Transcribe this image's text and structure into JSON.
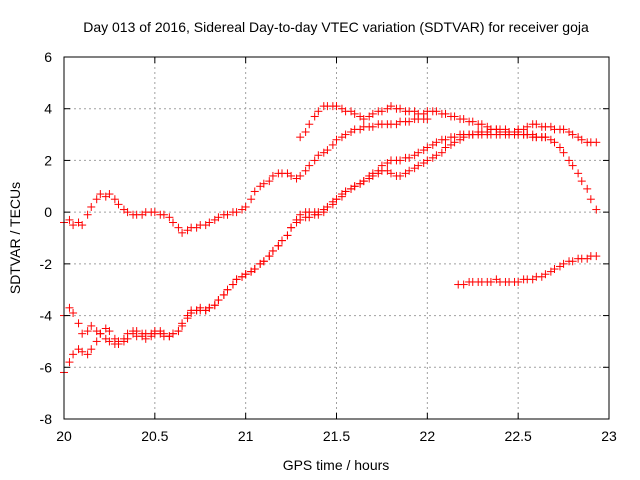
{
  "chart_data": {
    "type": "scatter",
    "title": "Day 013 of 2016, Sidereal Day-to-day VTEC variation (SDTVAR) for receiver goja",
    "xlabel": "GPS time / hours",
    "ylabel": "SDTVAR / TECUs",
    "xlim": [
      20,
      23
    ],
    "ylim": [
      -8,
      6
    ],
    "xticks": [
      "20",
      "20.5",
      "21",
      "21.5",
      "22",
      "22.5",
      "23"
    ],
    "yticks": [
      "-8",
      "-6",
      "-4",
      "-2",
      "0",
      "2",
      "4",
      "6"
    ],
    "grid": true,
    "legend": "none",
    "marker": "plus",
    "color": "#ff0000",
    "series": [
      {
        "x": [
          20.0,
          20.03,
          20.05,
          20.08,
          20.1,
          20.13,
          20.15,
          20.18,
          20.2,
          20.23,
          20.25,
          20.28,
          20.3,
          20.33,
          20.35,
          20.38,
          20.4,
          20.43,
          20.45,
          20.48,
          20.5,
          20.53,
          20.55,
          20.58,
          20.6,
          20.63,
          20.65,
          20.68,
          20.7,
          20.73,
          20.75,
          20.78,
          20.8,
          20.83,
          20.85,
          20.88,
          20.9,
          20.93,
          20.95,
          20.98,
          21.0,
          21.03,
          21.05,
          21.08,
          21.1,
          21.13,
          21.15,
          21.18,
          21.2,
          21.23,
          21.25,
          21.28,
          21.3,
          21.33,
          21.35,
          21.38,
          21.4,
          21.43,
          21.45,
          21.48,
          21.5,
          21.53,
          21.55,
          21.58,
          21.6,
          21.63,
          21.65,
          21.68,
          21.7,
          21.73,
          21.75,
          21.78,
          21.8,
          21.83,
          21.85,
          21.88,
          21.9,
          21.93,
          21.95,
          21.98,
          22.0
        ],
        "y": [
          -0.4,
          -0.3,
          -0.5,
          -0.4,
          -0.5,
          -0.1,
          0.2,
          0.5,
          0.7,
          0.6,
          0.7,
          0.5,
          0.3,
          0.1,
          0.0,
          -0.1,
          -0.1,
          -0.1,
          0.0,
          0.0,
          0.0,
          -0.1,
          -0.1,
          -0.2,
          -0.4,
          -0.6,
          -0.8,
          -0.7,
          -0.6,
          -0.6,
          -0.5,
          -0.5,
          -0.4,
          -0.3,
          -0.2,
          -0.1,
          -0.1,
          0.0,
          0.0,
          0.1,
          0.2,
          0.5,
          0.8,
          1.0,
          1.1,
          1.2,
          1.4,
          1.5,
          1.5,
          1.5,
          1.4,
          1.3,
          1.4,
          1.6,
          1.8,
          2.0,
          2.2,
          2.3,
          2.4,
          2.6,
          2.8,
          2.9,
          3.0,
          3.1,
          3.2,
          3.2,
          3.3,
          3.3,
          3.3,
          3.4,
          3.4,
          3.4,
          3.4,
          3.4,
          3.5,
          3.5,
          3.5,
          3.6,
          3.6,
          3.6,
          3.6
        ]
      },
      {
        "x": [
          20.0,
          20.03,
          20.05,
          20.08,
          20.1,
          20.13,
          20.15,
          20.18,
          20.2,
          20.23,
          20.25,
          20.28,
          20.3,
          20.33,
          20.35,
          20.38,
          20.4,
          20.43,
          20.45,
          20.48,
          20.5,
          20.53,
          20.55,
          20.58,
          20.6,
          20.63,
          20.65,
          20.68,
          20.7,
          20.73,
          20.75,
          20.78,
          20.8,
          20.83,
          20.85,
          20.88,
          20.9,
          20.93,
          20.95,
          20.98,
          21.0,
          21.03,
          21.05,
          21.08,
          21.1,
          21.13,
          21.15,
          21.18,
          21.2,
          21.23,
          21.25,
          21.28,
          21.3,
          21.33,
          21.35,
          21.38,
          21.4,
          21.43,
          21.45,
          21.48,
          21.5,
          21.53,
          21.55,
          21.58,
          21.6,
          21.63,
          21.65,
          21.68,
          21.7,
          21.73,
          21.75,
          21.78,
          21.8,
          21.83,
          21.85,
          21.88,
          21.9,
          21.93,
          21.95,
          21.98,
          22.0,
          22.03,
          22.05,
          22.08,
          22.1,
          22.13,
          22.15,
          22.18,
          22.2,
          22.23,
          22.25,
          22.28,
          22.3,
          22.33,
          22.35,
          22.38,
          22.4,
          22.43,
          22.45,
          22.48,
          22.5,
          22.53,
          22.55,
          22.58,
          22.6,
          22.63,
          22.65,
          22.68,
          22.7,
          22.73,
          22.75,
          22.78,
          22.8,
          22.83,
          22.85,
          22.88,
          22.9,
          22.93
        ],
        "y": [
          -4.0,
          -3.7,
          -3.9,
          -4.3,
          -4.7,
          -4.6,
          -4.4,
          -4.6,
          -4.7,
          -4.9,
          -5.0,
          -5.1,
          -5.1,
          -4.9,
          -4.7,
          -4.6,
          -4.8,
          -4.8,
          -4.7,
          -4.7,
          -4.6,
          -4.6,
          -4.7,
          -4.8,
          -4.7,
          -4.6,
          -4.4,
          -4.1,
          -3.9,
          -3.8,
          -3.8,
          -3.8,
          -3.7,
          -3.6,
          -3.4,
          -3.2,
          -3.0,
          -2.8,
          -2.6,
          -2.5,
          -2.4,
          -2.3,
          -2.2,
          -2.0,
          -1.9,
          -1.7,
          -1.5,
          -1.3,
          -1.1,
          -0.9,
          -0.6,
          -0.4,
          -0.3,
          -0.2,
          -0.2,
          -0.1,
          -0.1,
          0.0,
          0.2,
          0.3,
          0.5,
          0.6,
          0.8,
          0.9,
          1.0,
          1.1,
          1.2,
          1.4,
          1.5,
          1.6,
          1.8,
          1.9,
          2.0,
          2.0,
          2.0,
          2.1,
          2.1,
          2.2,
          2.3,
          2.4,
          2.5,
          2.6,
          2.7,
          2.8,
          2.8,
          2.9,
          2.9,
          3.0,
          3.0,
          3.0,
          3.0,
          3.0,
          3.0,
          3.0,
          3.0,
          3.0,
          3.0,
          3.0,
          3.0,
          3.0,
          3.0,
          3.0,
          3.0,
          2.9,
          2.9,
          2.9,
          2.9,
          2.8,
          2.7,
          2.5,
          2.3,
          2.0,
          1.8,
          1.5,
          1.2,
          0.9,
          0.5,
          0.1
        ]
      },
      {
        "x": [
          20.0,
          20.03,
          20.05,
          20.08,
          20.1,
          20.13,
          20.15,
          20.18,
          20.2,
          20.23,
          20.25,
          20.28,
          20.3,
          20.33,
          20.35,
          20.38,
          20.4,
          20.43,
          20.45,
          20.48,
          20.5,
          20.53,
          20.55,
          20.58,
          20.6,
          20.63,
          20.65,
          20.68,
          20.7,
          20.73,
          20.75,
          20.78,
          20.8,
          20.83,
          20.85,
          20.88,
          20.9,
          20.93,
          20.95,
          20.98,
          21.0,
          21.03,
          21.05,
          21.08,
          21.1,
          21.13,
          21.15,
          21.18,
          21.2,
          21.23,
          21.25,
          21.28,
          21.3,
          21.33,
          21.35,
          21.38,
          21.4,
          21.43,
          21.45,
          21.48,
          21.5,
          21.53,
          21.55,
          21.58,
          21.6,
          21.63,
          21.65,
          21.68,
          21.7,
          21.73,
          21.75,
          21.78,
          21.8,
          21.83,
          21.85,
          21.88,
          21.9,
          21.93,
          21.95,
          21.98,
          22.0,
          22.03,
          22.05,
          22.08,
          22.1,
          22.13,
          22.15,
          22.18,
          22.2,
          22.23,
          22.25,
          22.28,
          22.3,
          22.33,
          22.35,
          22.38,
          22.4,
          22.43,
          22.45,
          22.48,
          22.5,
          22.53,
          22.55,
          22.58,
          22.6,
          22.63,
          22.65
        ],
        "y": [
          -6.2,
          -5.8,
          -5.5,
          -5.3,
          -5.4,
          -5.5,
          -5.3,
          -5.0,
          -4.7,
          -4.5,
          -4.6,
          -4.9,
          -5.0,
          -5.0,
          -4.9,
          -4.7,
          -4.6,
          -4.7,
          -4.9,
          -4.8,
          -4.7,
          -4.7,
          -4.8,
          -4.8,
          -4.7,
          -4.6,
          -4.3,
          -4.0,
          -3.8,
          -3.8,
          -3.7,
          -3.8,
          -3.7,
          -3.6,
          -3.4,
          -3.2,
          -3.0,
          -2.8,
          -2.6,
          -2.5,
          -2.4,
          -2.3,
          -2.2,
          -2.0,
          -1.9,
          -1.7,
          -1.5,
          -1.3,
          -1.1,
          -0.9,
          -0.6,
          -0.3,
          -0.1,
          0.0,
          0.0,
          0.0,
          0.0,
          0.1,
          0.2,
          0.4,
          0.5,
          0.7,
          0.8,
          0.9,
          1.0,
          1.1,
          1.2,
          1.3,
          1.4,
          1.5,
          1.6,
          1.6,
          1.5,
          1.4,
          1.4,
          1.5,
          1.6,
          1.7,
          1.8,
          1.9,
          2.0,
          2.1,
          2.2,
          2.3,
          2.5,
          2.6,
          2.7,
          2.8,
          2.9,
          3.0,
          3.0,
          3.1,
          3.1,
          3.1,
          3.2,
          3.2,
          3.2,
          3.2,
          3.1,
          3.1,
          3.1,
          3.0,
          3.0,
          3.0,
          2.9,
          2.9,
          2.9
        ]
      },
      {
        "x": [
          21.3,
          21.33,
          21.35,
          21.38,
          21.4,
          21.43,
          21.45,
          21.48,
          21.5,
          21.53,
          21.55,
          21.58,
          21.6,
          21.63,
          21.65,
          21.68,
          21.7,
          21.73,
          21.75,
          21.78,
          21.8,
          21.83,
          21.85,
          21.88,
          21.9,
          21.93,
          21.95,
          21.98,
          22.0,
          22.03,
          22.05,
          22.08,
          22.1,
          22.13,
          22.15,
          22.18,
          22.2,
          22.23,
          22.25,
          22.28,
          22.3,
          22.33,
          22.35,
          22.38,
          22.4,
          22.43,
          22.45,
          22.48,
          22.5,
          22.53,
          22.55,
          22.58,
          22.6,
          22.63,
          22.65,
          22.68,
          22.7,
          22.73,
          22.75,
          22.78,
          22.8,
          22.83,
          22.85,
          22.88,
          22.9,
          22.93
        ],
        "y": [
          2.9,
          3.1,
          3.4,
          3.7,
          3.9,
          4.1,
          4.1,
          4.1,
          4.1,
          4.0,
          3.9,
          3.9,
          3.8,
          3.7,
          3.6,
          3.7,
          3.8,
          3.9,
          3.9,
          4.0,
          4.1,
          4.0,
          4.0,
          3.9,
          3.9,
          3.9,
          3.8,
          3.8,
          3.9,
          3.9,
          3.9,
          3.8,
          3.8,
          3.7,
          3.7,
          3.6,
          3.6,
          3.5,
          3.5,
          3.4,
          3.4,
          3.3,
          3.2,
          3.2,
          3.1,
          3.1,
          3.1,
          3.1,
          3.2,
          3.2,
          3.3,
          3.4,
          3.4,
          3.3,
          3.3,
          3.3,
          3.2,
          3.2,
          3.2,
          3.1,
          3.0,
          2.9,
          2.8,
          2.7,
          2.7,
          2.7
        ]
      },
      {
        "x": [
          22.17,
          22.2,
          22.23,
          22.25,
          22.28,
          22.3,
          22.33,
          22.35,
          22.38,
          22.4,
          22.43,
          22.45,
          22.48,
          22.5,
          22.53,
          22.55,
          22.58,
          22.6,
          22.63,
          22.65,
          22.68,
          22.7,
          22.73,
          22.75,
          22.78,
          22.8,
          22.83,
          22.85,
          22.88,
          22.9,
          22.93
        ],
        "y": [
          -2.8,
          -2.8,
          -2.7,
          -2.7,
          -2.7,
          -2.7,
          -2.7,
          -2.7,
          -2.6,
          -2.7,
          -2.7,
          -2.7,
          -2.7,
          -2.7,
          -2.6,
          -2.6,
          -2.6,
          -2.5,
          -2.5,
          -2.4,
          -2.3,
          -2.2,
          -2.1,
          -2.0,
          -1.9,
          -1.9,
          -1.8,
          -1.8,
          -1.8,
          -1.7,
          -1.7
        ]
      }
    ]
  }
}
